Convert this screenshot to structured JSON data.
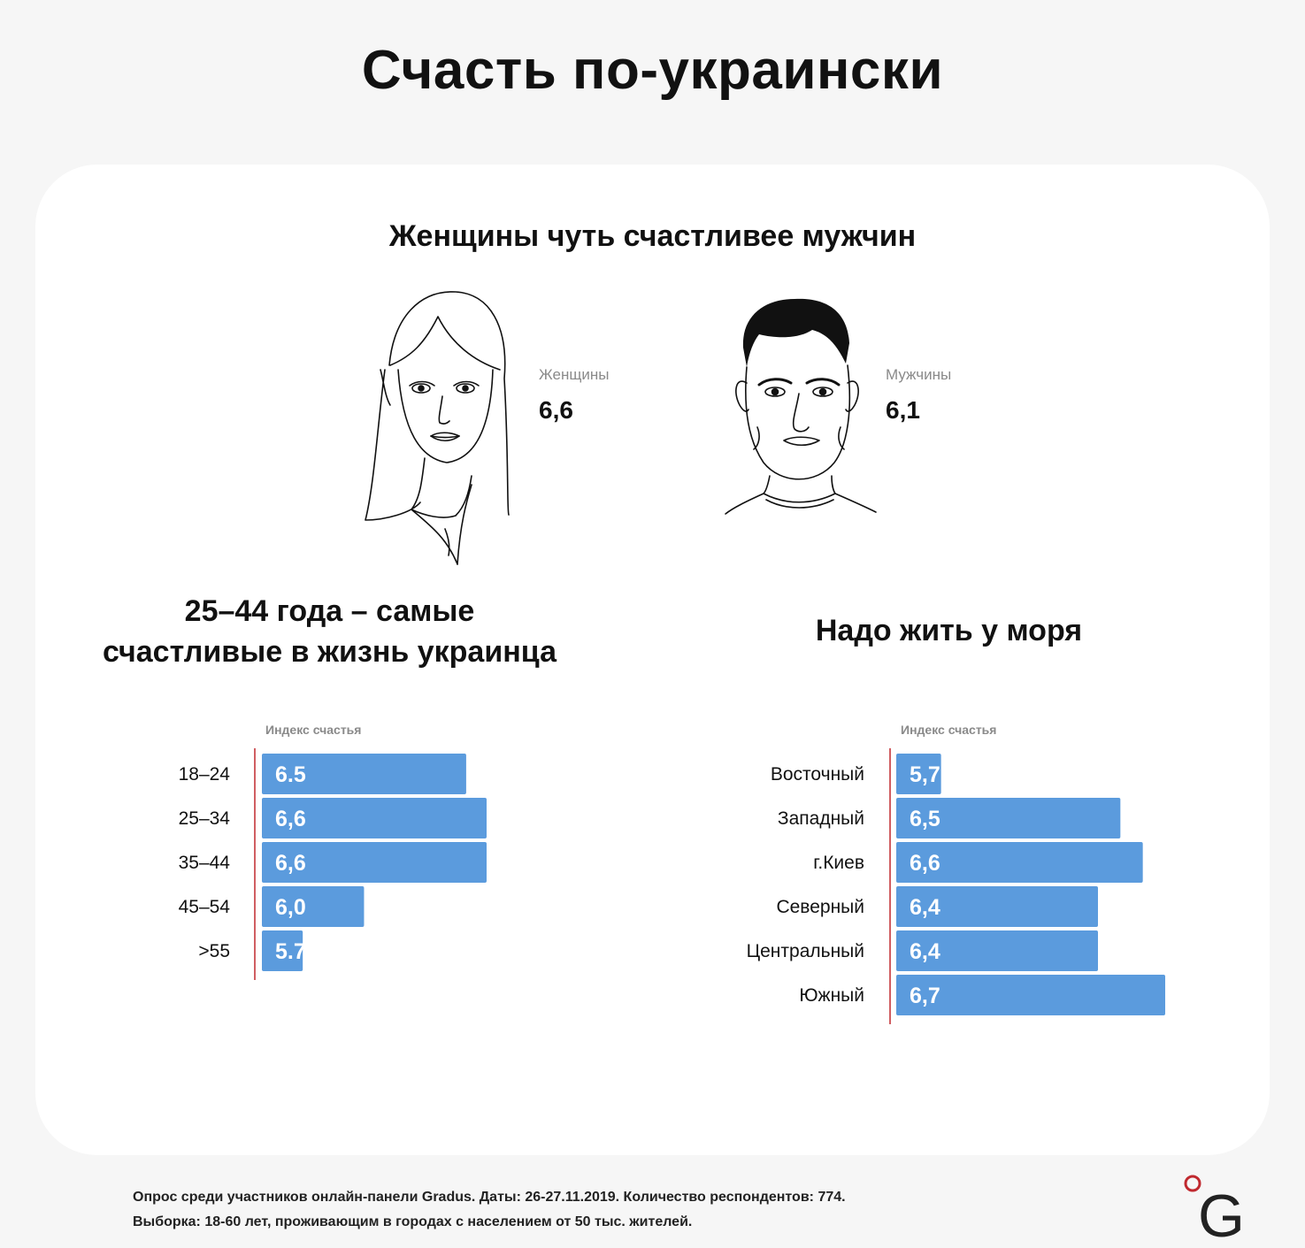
{
  "title": "Счасть по-украински",
  "gender": {
    "title": "Женщины чуть счастливее мужчин",
    "women": {
      "label": "Женщины",
      "value": "6,6"
    },
    "men": {
      "label": "Мужчины",
      "value": "6,1"
    }
  },
  "colors": {
    "bar": "#5b9bdd",
    "axis": "#c0292f",
    "background": "#f6f6f6",
    "card": "#ffffff"
  },
  "chart_data": [
    {
      "type": "bar",
      "orientation": "horizontal",
      "title_lines": [
        "25–44 года – самые",
        "счастливые в жизнь украинца"
      ],
      "xlabel": "Индекс счастья",
      "categories": [
        "18–24",
        "25–34",
        "35–44",
        "45–54",
        ">55"
      ],
      "values": [
        6.5,
        6.6,
        6.6,
        6.0,
        5.7
      ],
      "value_labels": [
        "6.5",
        "6,6",
        "6,6",
        "6,0",
        "5.7"
      ],
      "xlim": [
        5.5,
        6.6
      ]
    },
    {
      "type": "bar",
      "orientation": "horizontal",
      "title_lines": [
        "Надо жить у моря"
      ],
      "xlabel": "Индекс счастья",
      "categories": [
        "Восточный",
        "Западный",
        "г.Киев",
        "Северный",
        "Центральный",
        "Южный"
      ],
      "values": [
        5.7,
        6.5,
        6.6,
        6.4,
        6.4,
        6.7
      ],
      "value_labels": [
        "5,7",
        "6,5",
        "6,6",
        "6,4",
        "6,4",
        "6,7"
      ],
      "xlim": [
        5.5,
        6.7
      ]
    }
  ],
  "footer": {
    "line1": "Опрос среди участников онлайн-панели Gradus. Даты: 26-27.11.2019. Количество респондентов: 774.",
    "line2": "Выборка: 18-60 лет, проживающим в городах с населением от 50 тыс. жителей."
  },
  "logo": {
    "letter": "G"
  }
}
